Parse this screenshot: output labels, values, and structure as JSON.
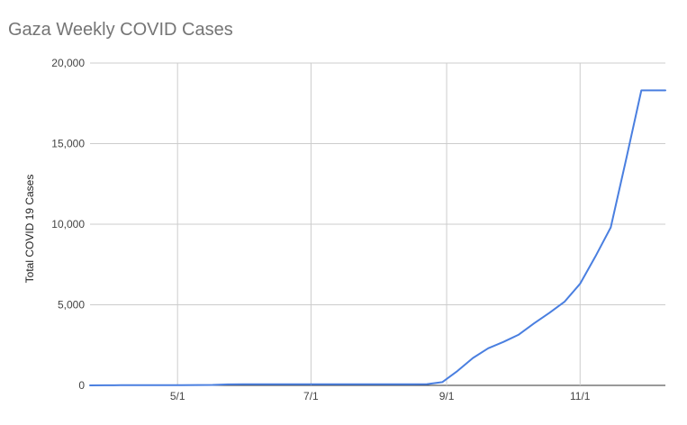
{
  "chart_data": {
    "type": "line",
    "title": "Gaza Weekly COVID Cases",
    "xlabel": "",
    "ylabel": "Total COVID 19 Cases",
    "ylim": [
      0,
      20000
    ],
    "y_ticks": [
      0,
      5000,
      10000,
      15000,
      20000
    ],
    "y_tick_labels": [
      "0",
      "5,000",
      "10,000",
      "15,000",
      "20,000"
    ],
    "x_ticks": [
      "2020-05-01",
      "2020-07-01",
      "2020-09-01",
      "2020-11-01"
    ],
    "x_tick_labels": [
      "5/1",
      "7/1",
      "9/1",
      "11/1"
    ],
    "xlim": [
      "2020-03-22",
      "2020-12-10"
    ],
    "grid": true,
    "color": "#4a7fe0",
    "series": [
      {
        "x": [
          "2020-03-22",
          "2020-03-29",
          "2020-04-05",
          "2020-04-12",
          "2020-04-19",
          "2020-04-26",
          "2020-05-03",
          "2020-05-10",
          "2020-05-17",
          "2020-05-24",
          "2020-05-31",
          "2020-06-07",
          "2020-06-14",
          "2020-06-21",
          "2020-06-28",
          "2020-07-05",
          "2020-07-12",
          "2020-07-19",
          "2020-07-26",
          "2020-08-02",
          "2020-08-09",
          "2020-08-16",
          "2020-08-23",
          "2020-08-30",
          "2020-09-06",
          "2020-09-13",
          "2020-09-20",
          "2020-09-27",
          "2020-10-04",
          "2020-10-11",
          "2020-10-18",
          "2020-10-25",
          "2020-11-01",
          "2020-11-08",
          "2020-11-15",
          "2020-11-22",
          "2020-11-29",
          "2020-12-06",
          "2020-12-10"
        ],
        "values": [
          2,
          5,
          10,
          12,
          15,
          17,
          18,
          20,
          30,
          60,
          65,
          70,
          72,
          72,
          72,
          72,
          72,
          72,
          72,
          72,
          72,
          72,
          80,
          200,
          900,
          1700,
          2300,
          2700,
          3150,
          3850,
          4500,
          5200,
          6300,
          8000,
          9800,
          14000,
          18300,
          18300,
          18300
        ]
      }
    ]
  }
}
